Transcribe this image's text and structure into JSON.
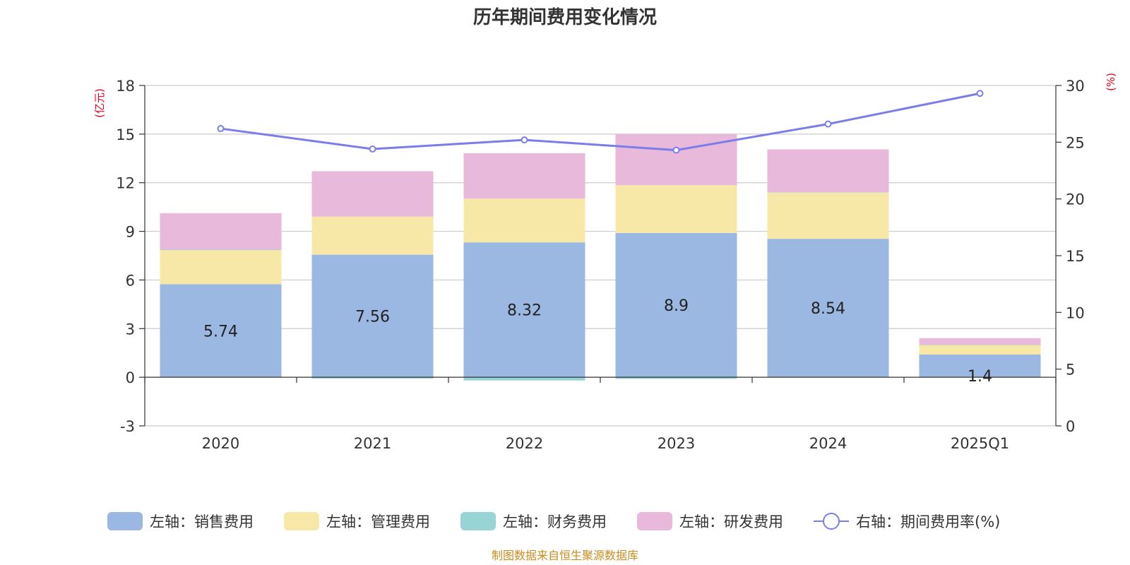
{
  "chart_data": {
    "type": "bar",
    "title": "历年期间费用变化情况",
    "categories": [
      "2020",
      "2021",
      "2022",
      "2023",
      "2024",
      "2025Q1"
    ],
    "left_axis": {
      "unit": "(亿元)",
      "ylim": [
        -3,
        18
      ],
      "ticks": [
        -3,
        0,
        3,
        6,
        9,
        12,
        15,
        18
      ]
    },
    "right_axis": {
      "unit": "(%)",
      "ylim": [
        0,
        30
      ],
      "ticks": [
        0,
        5,
        10,
        15,
        20,
        25,
        30
      ]
    },
    "series": [
      {
        "name": "左轴：销售费用",
        "axis": "left",
        "kind": "bar",
        "color": "#9bb8e2",
        "values": [
          5.74,
          7.56,
          8.32,
          8.9,
          8.54,
          1.4
        ],
        "labels": [
          "5.74",
          "7.56",
          "8.32",
          "8.9",
          "8.54",
          "1.4"
        ]
      },
      {
        "name": "左轴：管理费用",
        "axis": "left",
        "kind": "bar",
        "color": "#f8e8a8",
        "values": [
          2.1,
          2.35,
          2.7,
          2.95,
          2.85,
          0.6
        ]
      },
      {
        "name": "左轴：财务费用",
        "axis": "left",
        "kind": "bar",
        "color": "#96d4d6",
        "values": [
          0.03,
          -0.08,
          -0.2,
          -0.1,
          0.02,
          0.01
        ]
      },
      {
        "name": "左轴：研发费用",
        "axis": "left",
        "kind": "bar",
        "color": "#e8b9da",
        "values": [
          2.25,
          2.8,
          2.8,
          3.15,
          2.65,
          0.4
        ]
      },
      {
        "name": "右轴：期间费用率(%)",
        "axis": "right",
        "kind": "line",
        "color": "#7b7de8",
        "values": [
          26.2,
          24.4,
          25.2,
          24.3,
          26.6,
          29.3
        ]
      }
    ],
    "legend_position": "bottom",
    "grid": true
  },
  "source_note": "制图数据来自恒生聚源数据库"
}
